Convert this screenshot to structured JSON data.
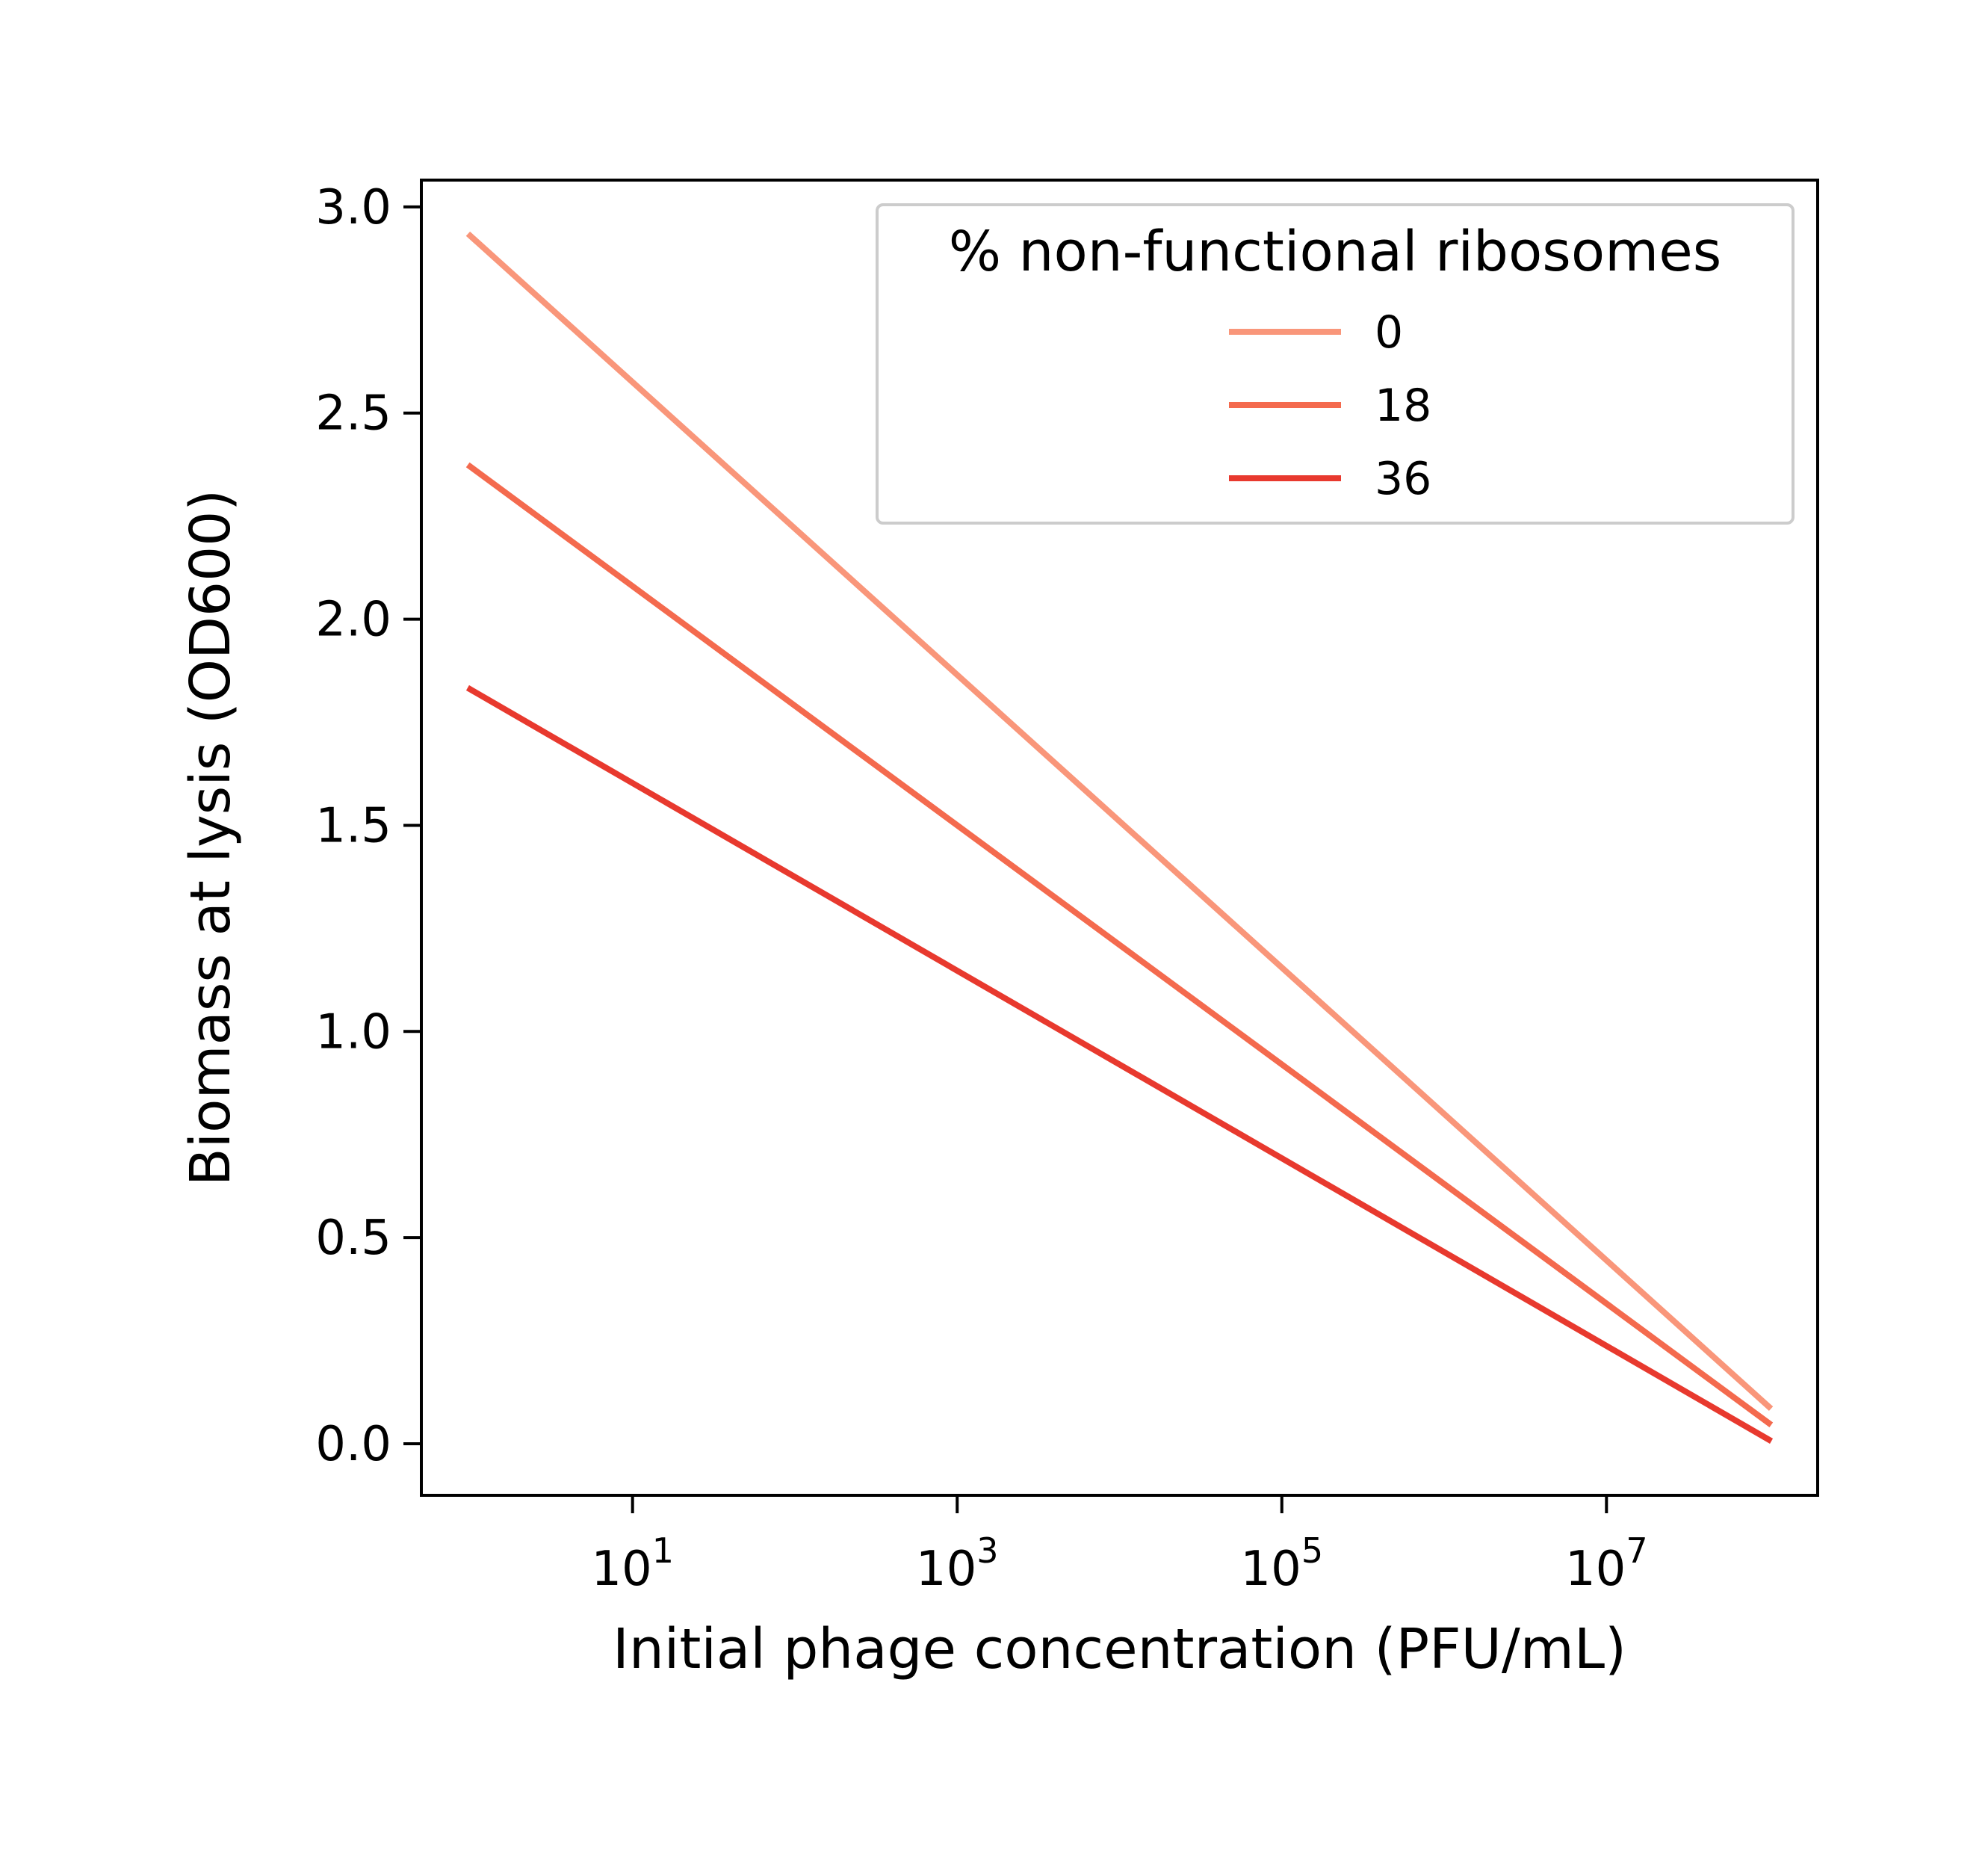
{
  "chart_data": {
    "type": "line",
    "xlabel": "Initial phage concentration (PFU/mL)",
    "ylabel": "Biomass at lysis (OD600)",
    "x_scale": "log",
    "xlim": [
      0.5,
      200000000
    ],
    "ylim": [
      -0.125,
      3.065
    ],
    "x_ticks": [
      {
        "value": 10,
        "base": "10",
        "exp": "1"
      },
      {
        "value": 1000,
        "base": "10",
        "exp": "3"
      },
      {
        "value": 100000,
        "base": "10",
        "exp": "5"
      },
      {
        "value": 10000000,
        "base": "10",
        "exp": "7"
      }
    ],
    "y_ticks": [
      {
        "value": 0.0,
        "label": "0.0"
      },
      {
        "value": 0.5,
        "label": "0.5"
      },
      {
        "value": 1.0,
        "label": "1.0"
      },
      {
        "value": 1.5,
        "label": "1.5"
      },
      {
        "value": 2.0,
        "label": "2.0"
      },
      {
        "value": 2.5,
        "label": "2.5"
      },
      {
        "value": 3.0,
        "label": "3.0"
      }
    ],
    "grid": false,
    "legend": {
      "title": "% non-functional ribosomes",
      "placement": "top-right"
    },
    "x": [
      1,
      100000000
    ],
    "series": [
      {
        "name": "0",
        "color": "#f9967a",
        "values": [
          2.93,
          0.09
        ]
      },
      {
        "name": "18",
        "color": "#f46a4e",
        "values": [
          2.37,
          0.05
        ]
      },
      {
        "name": "36",
        "color": "#e8392e",
        "values": [
          1.83,
          0.01
        ]
      }
    ]
  }
}
